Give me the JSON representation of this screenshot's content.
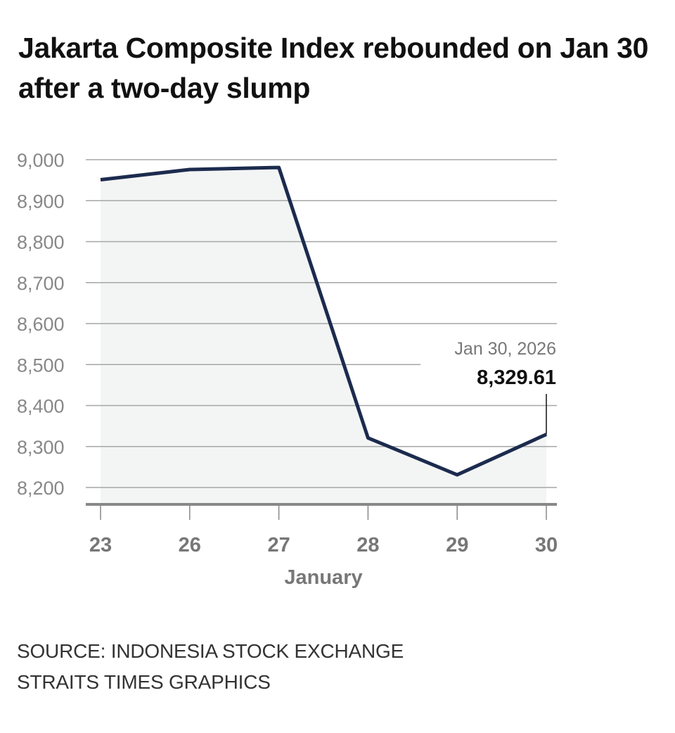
{
  "title": "Jakarta Composite Index rebounded on Jan 30 after a two-day slump",
  "chart_data": {
    "type": "area",
    "title": "Jakarta Composite Index rebounded on Jan 30 after a two-day slump",
    "xlabel": "January",
    "ylabel": "",
    "categories": [
      "23",
      "26",
      "27",
      "28",
      "29",
      "30"
    ],
    "series": [
      {
        "name": "Jakarta Composite Index",
        "values": [
          8951,
          8976,
          8981,
          8321,
          8231,
          8329.61
        ]
      }
    ],
    "ylim": [
      8160,
      9000
    ],
    "yticks": [
      9000,
      8900,
      8800,
      8700,
      8600,
      8500,
      8400,
      8300,
      8200
    ],
    "ytick_labels": [
      "9,000",
      "8,900",
      "8,800",
      "8,700",
      "8,600",
      "8,500",
      "8,400",
      "8,300",
      "8,200"
    ],
    "grid": true,
    "annotation": {
      "date": "Jan 30, 2026",
      "value": "8,329.61",
      "category": "30"
    },
    "colors": {
      "line": "#1c2b4e",
      "fill": "#f3f5f5",
      "grid": "#a6a6a6",
      "axis": "#888888",
      "tick_text": "#888888"
    }
  },
  "footer": {
    "source": "SOURCE: INDONESIA STOCK EXCHANGE",
    "credit": "STRAITS TIMES GRAPHICS"
  }
}
